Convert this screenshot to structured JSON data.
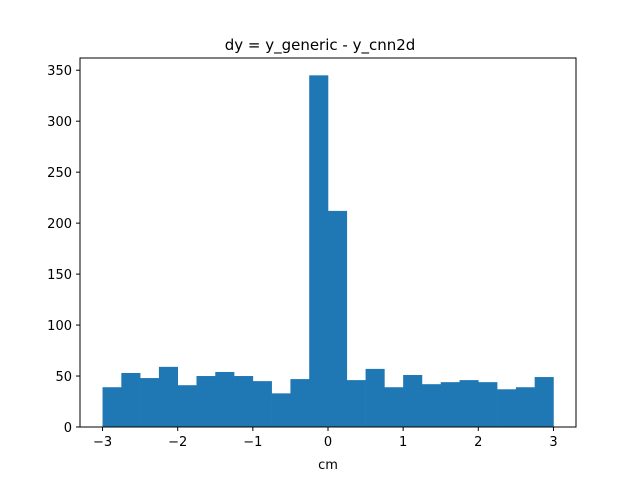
{
  "chart_data": {
    "type": "bar",
    "title": "dy = y_generic - y_cnn2d",
    "xlabel": "cm",
    "ylabel": "",
    "bin_edges": [
      -3.0,
      -2.75,
      -2.5,
      -2.25,
      -2.0,
      -1.75,
      -1.5,
      -1.25,
      -1.0,
      -0.75,
      -0.5,
      -0.25,
      0.0,
      0.25,
      0.5,
      0.75,
      1.0,
      1.25,
      1.5,
      1.75,
      2.0,
      2.25,
      2.5,
      2.75,
      3.0
    ],
    "values": [
      39,
      53,
      48,
      59,
      41,
      50,
      54,
      50,
      45,
      33,
      47,
      345,
      212,
      46,
      57,
      39,
      51,
      42,
      44,
      46,
      44,
      37,
      39,
      49
    ],
    "xlim": [
      -3.3,
      3.3
    ],
    "ylim": [
      0,
      362
    ],
    "xticks": [
      -3,
      -2,
      -1,
      0,
      1,
      2,
      3
    ],
    "xtick_labels": [
      "−3",
      "−2",
      "−1",
      "0",
      "1",
      "2",
      "3"
    ],
    "yticks": [
      0,
      50,
      100,
      150,
      200,
      250,
      300,
      350
    ],
    "ytick_labels": [
      "0",
      "50",
      "100",
      "150",
      "200",
      "250",
      "300",
      "350"
    ],
    "bar_color": "#1f77b4",
    "grid": false
  }
}
